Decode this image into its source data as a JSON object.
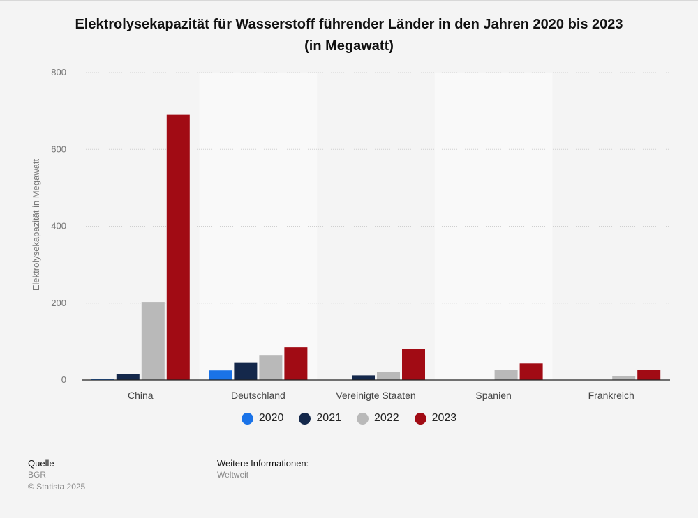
{
  "chart_title_line1": "Elektrolysekapazität für Wasserstoff führender Länder in den Jahren 2020 bis 2023",
  "chart_title_line2": "(in Megawatt)",
  "chart_data": {
    "type": "bar",
    "title": "Elektrolysekapazität für Wasserstoff führender Länder in den Jahren 2020 bis 2023 (in Megawatt)",
    "xlabel": "",
    "ylabel": "Elektrolysekapazität in Megawatt",
    "ylim": [
      0,
      800
    ],
    "yticks": [
      0,
      200,
      400,
      600,
      800
    ],
    "grid": true,
    "legend_position": "bottom",
    "categories": [
      "China",
      "Deutschland",
      "Vereinigte Staaten",
      "Spanien",
      "Frankreich"
    ],
    "series": [
      {
        "name": "2020",
        "color": "#1a73e8",
        "values": [
          3,
          25,
          0,
          0,
          0
        ]
      },
      {
        "name": "2021",
        "color": "#14284b",
        "values": [
          15,
          46,
          12,
          0,
          0
        ]
      },
      {
        "name": "2022",
        "color": "#b9b9b9",
        "values": [
          203,
          65,
          20,
          27,
          10
        ]
      },
      {
        "name": "2023",
        "color": "#a10b14",
        "values": [
          690,
          85,
          80,
          43,
          27
        ]
      }
    ]
  },
  "footer": {
    "source_heading": "Quelle",
    "source_value": "BGR",
    "copyright": "© Statista 2025",
    "info_heading": "Weitere Informationen:",
    "info_value": "Weltweit"
  }
}
